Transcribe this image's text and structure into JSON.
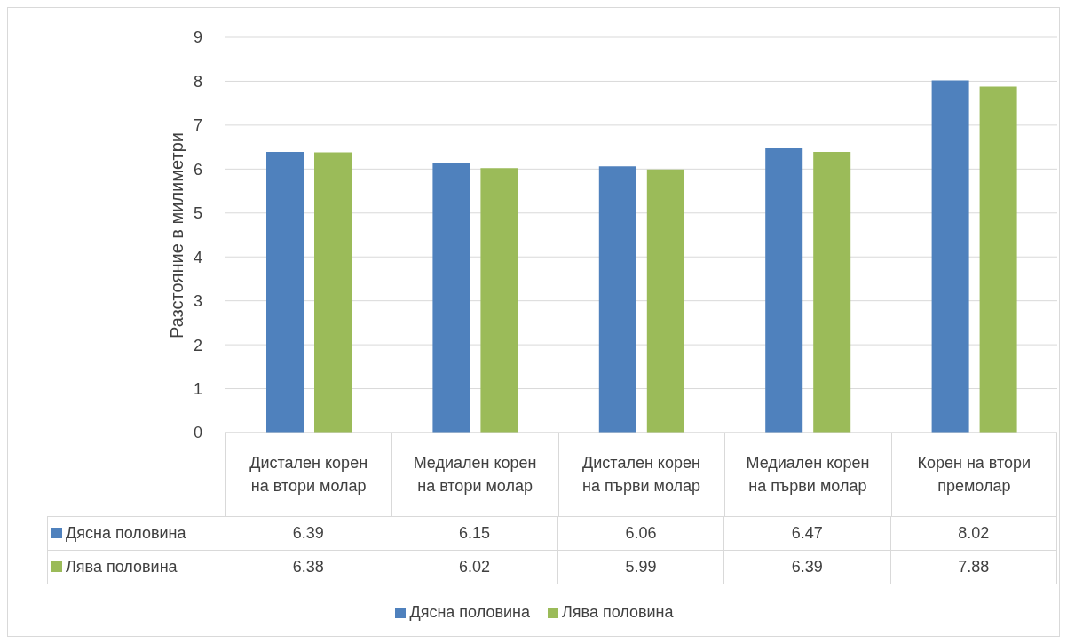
{
  "chart_data": {
    "type": "bar",
    "ylabel": "Разстояние в милиметри",
    "categories": [
      "Дистален корен на втори молар",
      "Медиален корен на втори молар",
      "Дистален корен на първи молар",
      "Медиален корен на първи молар",
      "Корен на втори премолар"
    ],
    "series": [
      {
        "name": "Дясна половина",
        "color": "#4f81bd",
        "values": [
          6.39,
          6.15,
          6.06,
          6.47,
          8.02
        ]
      },
      {
        "name": "Лява половина",
        "color": "#9bbb59",
        "values": [
          6.38,
          6.02,
          5.99,
          6.39,
          7.88
        ]
      }
    ],
    "ylim": [
      0,
      9
    ],
    "yticks": [
      0,
      1,
      2,
      3,
      4,
      5,
      6,
      7,
      8,
      9
    ],
    "grid": "y",
    "data_labels": true,
    "legend": "bottom"
  }
}
